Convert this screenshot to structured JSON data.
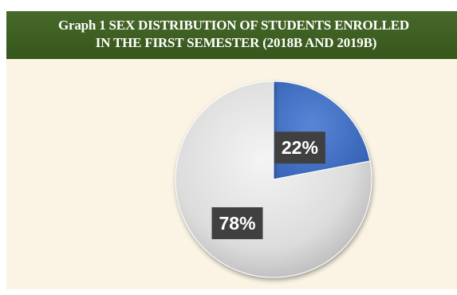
{
  "chart_data": {
    "type": "pie",
    "title_line1": "Graph 1 SEX DISTRIBUTION OF STUDENTS ENROLLED",
    "title_line2": "IN THE FIRST SEMESTER (2018B AND 2019B)",
    "slices": [
      {
        "value": 22,
        "label": "22%",
        "color": "#4472c4"
      },
      {
        "value": 78,
        "label": "78%",
        "color": "#d9d9d9"
      }
    ]
  }
}
